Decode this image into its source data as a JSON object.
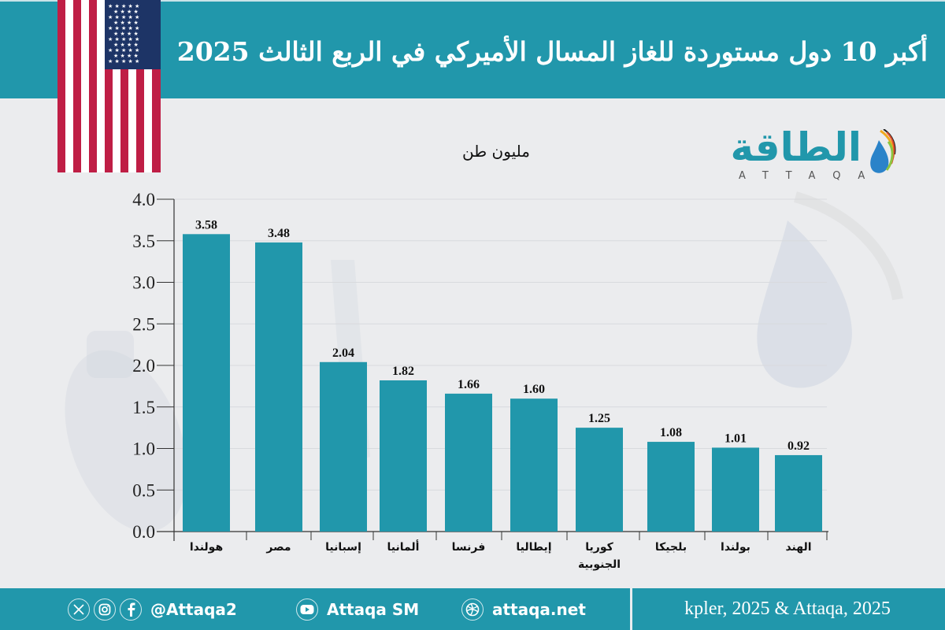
{
  "header": {
    "title": "أكبر 10 دول مستوردة للغاز المسال الأميركي في الربع الثالث 2025",
    "background_color": "#2197ab"
  },
  "flag": {
    "icon": "us-flag-icon"
  },
  "logo": {
    "arabic": "الطاقة",
    "english": "ATTAQA"
  },
  "unit_label": "مليون طن",
  "chart_data": {
    "type": "bar",
    "title": "أكبر 10 دول مستوردة للغاز المسال الأميركي في الربع الثالث 2025",
    "ylabel": "مليون طن",
    "xlabel": "",
    "categories": [
      "هولندا",
      "مصر",
      "إسبانيا",
      "ألمانيا",
      "فرنسا",
      "إيطاليا",
      "كوريا الجنوبية",
      "بلجيكا",
      "بولندا",
      "الهند"
    ],
    "values": [
      3.58,
      3.48,
      2.04,
      1.82,
      1.66,
      1.6,
      1.25,
      1.08,
      1.01,
      0.92
    ],
    "value_labels": [
      "3.58",
      "3.48",
      "2.04",
      "1.82",
      "1.66",
      "1.60",
      "1.25",
      "1.08",
      "1.01",
      "0.92"
    ],
    "ylim": [
      0,
      4.0
    ],
    "yticks": [
      "0.0",
      "0.5",
      "1.0",
      "1.5",
      "2.0",
      "2.5",
      "3.0",
      "3.5",
      "4.0"
    ],
    "grid": true,
    "legend": "none",
    "bar_color": "#2197ab"
  },
  "footer": {
    "social_handle": "@Attaqa2",
    "youtube": "Attaqa SM",
    "website": "attaqa.net",
    "source": "kpler, 2025 & Attaqa, 2025"
  }
}
